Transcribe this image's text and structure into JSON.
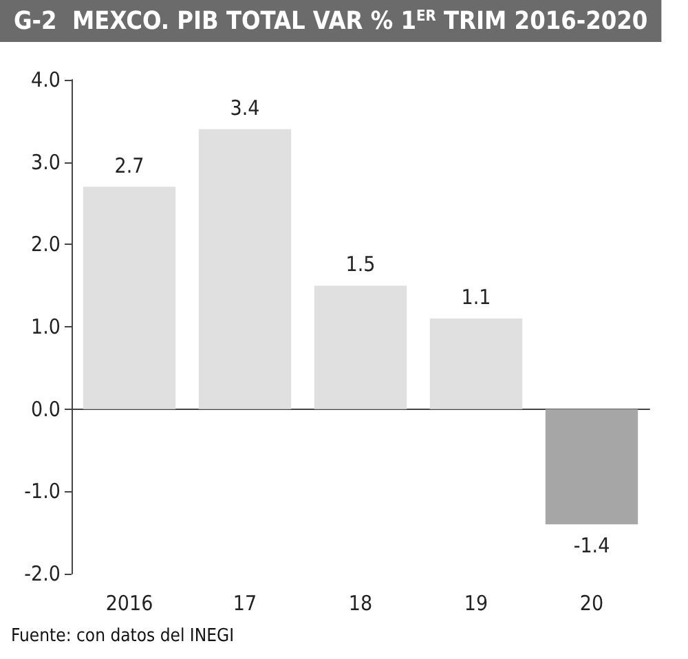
{
  "chart_data": {
    "type": "bar",
    "title": "G-2  MEXCO. PIB TOTAL VAR % 1$^{ER}$ TRIM 2016-2020",
    "categories": [
      "2016",
      "17",
      "18",
      "19",
      "20"
    ],
    "values": [
      2.7,
      3.4,
      1.5,
      1.1,
      -1.4
    ],
    "colors": [
      "#e0e0e0",
      "#e0e0e0",
      "#e0e0e0",
      "#e0e0e0",
      "#a6a6a6"
    ],
    "ylim": [
      -2,
      4
    ],
    "yticks": [
      {
        "value": -2,
        "label": "-2.0"
      },
      {
        "value": -1,
        "label": "-1.0"
      },
      {
        "value": 0,
        "label": "0.0"
      },
      {
        "value": 1,
        "label": "1.0"
      },
      {
        "value": 2,
        "label": "2.0"
      },
      {
        "value": 3,
        "label": "3.0"
      },
      {
        "value": 4,
        "label": "4.0"
      }
    ],
    "data_labels": true,
    "annotations": [
      "Fuente: con datos del INEGI"
    ]
  }
}
